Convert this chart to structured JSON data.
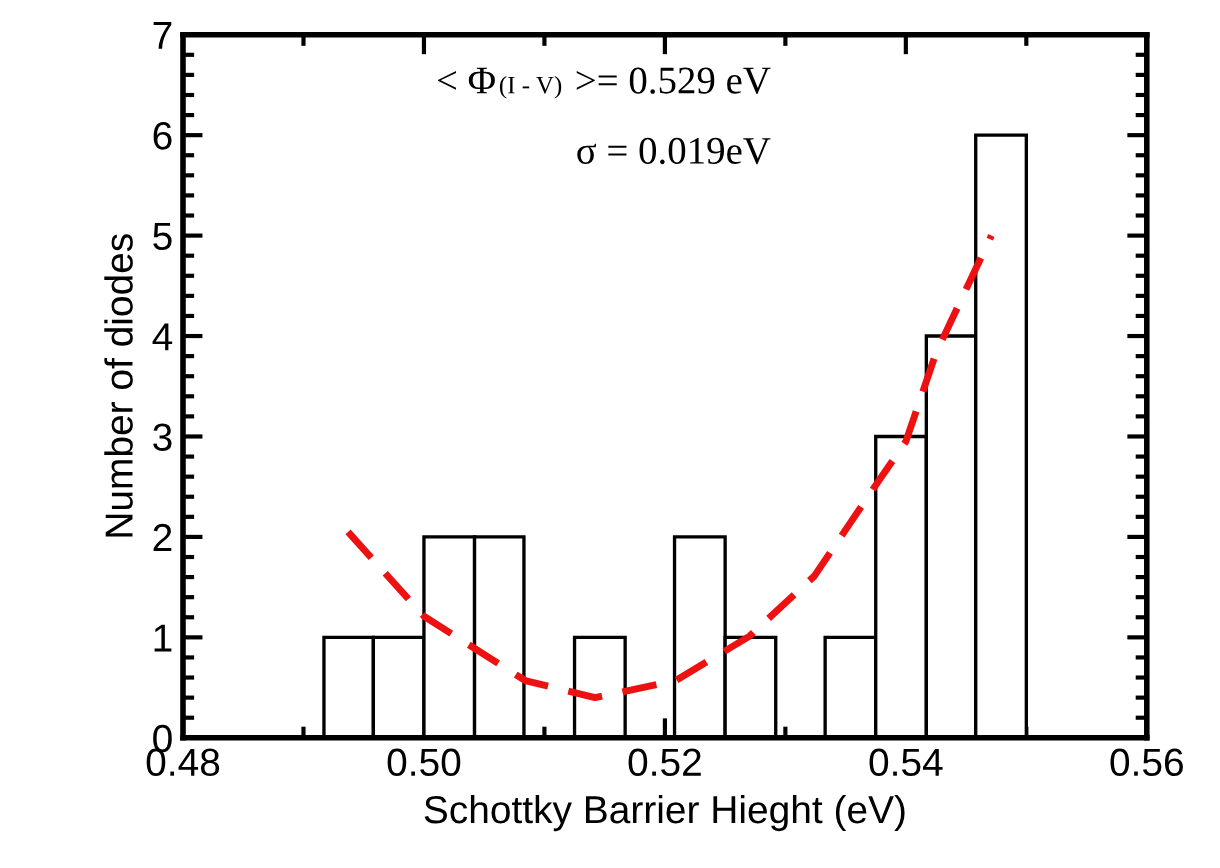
{
  "chart_data": {
    "type": "histogram",
    "xlabel": "Schottky Barrier Hieght (eV)",
    "ylabel": "Number of diodes",
    "bins": [
      0.4917,
      0.4958,
      0.5,
      0.5042,
      0.5083,
      0.5125,
      0.5167,
      0.5208,
      0.525,
      0.5292,
      0.5333,
      0.5375,
      0.5417,
      0.5458,
      0.55
    ],
    "values": [
      1,
      1,
      2,
      2,
      0,
      1,
      0,
      2,
      1,
      0,
      1,
      3,
      4,
      6
    ],
    "color": "#ffffff",
    "series": [
      {
        "type": "line",
        "color": "#ee1111",
        "line_style": "dashed",
        "x": [
          0.4937,
          0.5,
          0.5084,
          0.5142,
          0.5209,
          0.527,
          0.5324,
          0.5377,
          0.54,
          0.5425,
          0.5471
        ],
        "values": [
          2.05,
          1.21,
          0.57,
          0.4,
          0.57,
          1.01,
          1.61,
          2.55,
          2.95,
          3.83,
          5.0
        ]
      }
    ],
    "annotations": [
      "< Φ$_{(I - V)}$ >= 0.529 eV",
      "σ = 0.019eV"
    ],
    "xlim": [
      0.48,
      0.56
    ],
    "xticks": [
      {
        "value": 0.48,
        "label": "0.48"
      },
      {
        "value": 0.5,
        "label": "0.50"
      },
      {
        "value": 0.52,
        "label": "0.52"
      },
      {
        "value": 0.54,
        "label": "0.54"
      },
      {
        "value": 0.56,
        "label": "0.56"
      }
    ],
    "ylim": [
      0,
      7
    ],
    "yticks": [
      0,
      1,
      2,
      3,
      4,
      5,
      6,
      7
    ],
    "grid": false,
    "legend": false
  }
}
